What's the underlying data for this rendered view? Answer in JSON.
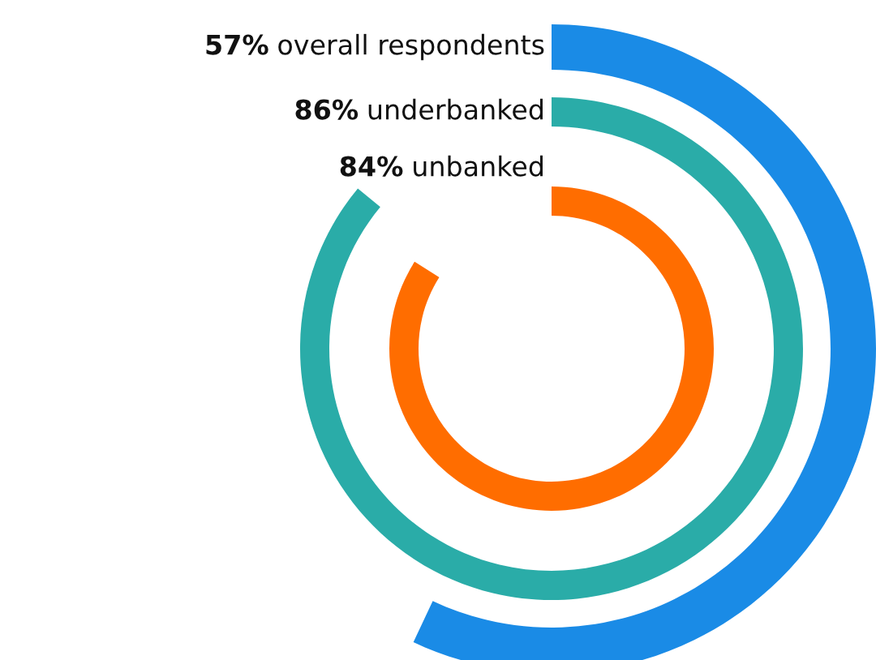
{
  "chart_data": {
    "type": "other",
    "categories": [
      "overall respondents",
      "underbanked",
      "unbanked"
    ],
    "values": [
      57,
      86,
      84
    ],
    "colors": [
      "#1a8be6",
      "#2aaca8",
      "#ff6d00"
    ],
    "value_labels": [
      "57%",
      "86%",
      "84%"
    ]
  }
}
